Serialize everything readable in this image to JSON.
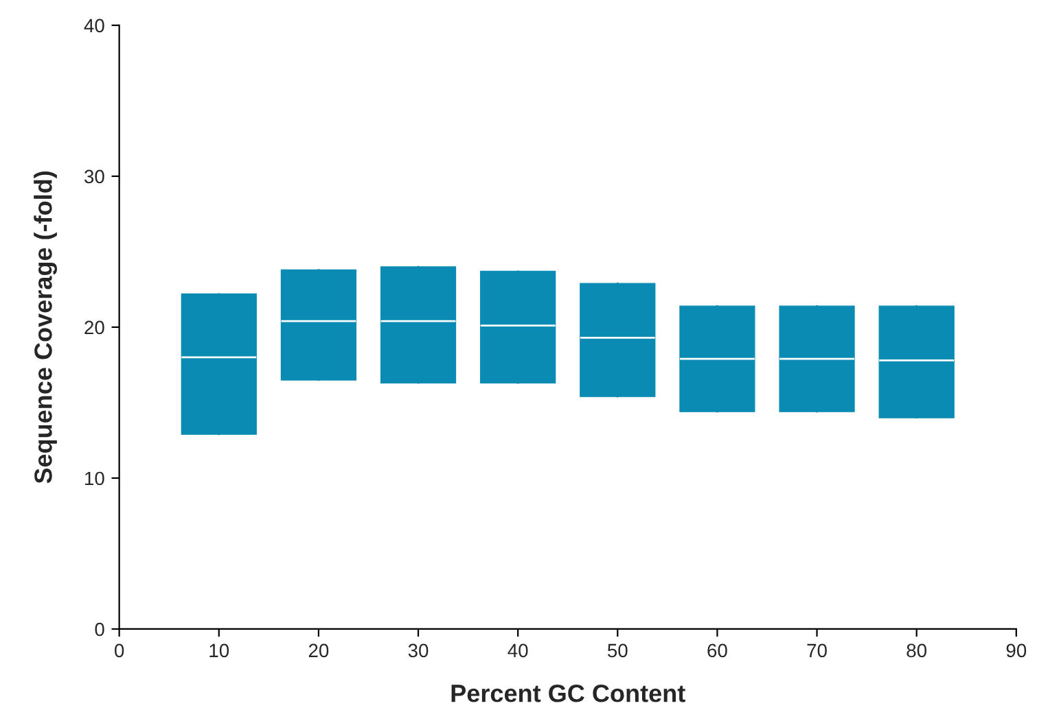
{
  "chart_data": {
    "type": "box",
    "xlabel": "Percent GC Content",
    "ylabel": "Sequence Coverage (-fold)",
    "x": [
      10,
      20,
      30,
      40,
      50,
      60,
      70,
      80
    ],
    "boxes": [
      {
        "low": 12.9,
        "q1": 12.9,
        "median": 18.0,
        "q3": 22.2,
        "high": 22.2
      },
      {
        "low": 16.5,
        "q1": 16.5,
        "median": 20.4,
        "q3": 23.8,
        "high": 23.8
      },
      {
        "low": 16.3,
        "q1": 16.3,
        "median": 20.4,
        "q3": 24.0,
        "high": 24.0
      },
      {
        "low": 16.3,
        "q1": 16.3,
        "median": 20.1,
        "q3": 23.7,
        "high": 23.7
      },
      {
        "low": 15.4,
        "q1": 15.4,
        "median": 19.3,
        "q3": 22.9,
        "high": 22.9
      },
      {
        "low": 14.4,
        "q1": 14.4,
        "median": 17.9,
        "q3": 21.4,
        "high": 21.4
      },
      {
        "low": 14.4,
        "q1": 14.4,
        "median": 17.9,
        "q3": 21.4,
        "high": 21.4
      },
      {
        "low": 14.0,
        "q1": 14.0,
        "median": 17.8,
        "q3": 21.4,
        "high": 21.4
      }
    ],
    "color": "#0a8bb3",
    "xlim": [
      0,
      90
    ],
    "xticks": [
      0,
      10,
      20,
      30,
      40,
      50,
      60,
      70,
      80,
      90
    ],
    "ylim": [
      0,
      40
    ],
    "yticks": [
      0,
      10,
      20,
      30,
      40
    ],
    "grid": false
  }
}
